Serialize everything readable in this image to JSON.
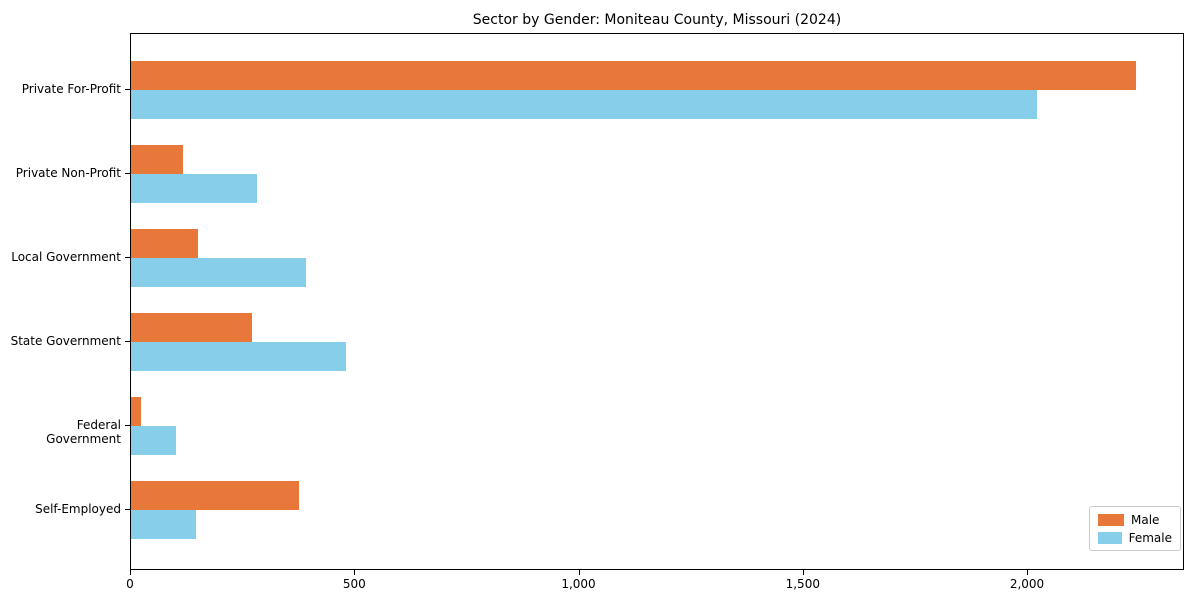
{
  "chart_data": {
    "type": "bar",
    "orientation": "horizontal",
    "title": "Sector by Gender: Moniteau County, Missouri (2024)",
    "categories": [
      "Private For-Profit",
      "Private Non-Profit",
      "Local Government",
      "State Government",
      "Federal Government",
      "Self-Employed"
    ],
    "series": [
      {
        "name": "Male",
        "color": "#e8773a",
        "values": [
          2240,
          115,
          150,
          270,
          22,
          375
        ]
      },
      {
        "name": "Female",
        "color": "#87ceeb",
        "values": [
          2020,
          280,
          390,
          480,
          100,
          145
        ]
      }
    ],
    "xlabel": "",
    "ylabel": "",
    "xlim": [
      0,
      2350
    ],
    "xticks": [
      0,
      500,
      1000,
      1500,
      2000
    ],
    "xtick_labels": [
      "0",
      "500",
      "1,000",
      "1,500",
      "2,000"
    ],
    "legend_position": "lower right",
    "grid": false,
    "axis_color": "#000000",
    "background_color": "#ffffff"
  }
}
